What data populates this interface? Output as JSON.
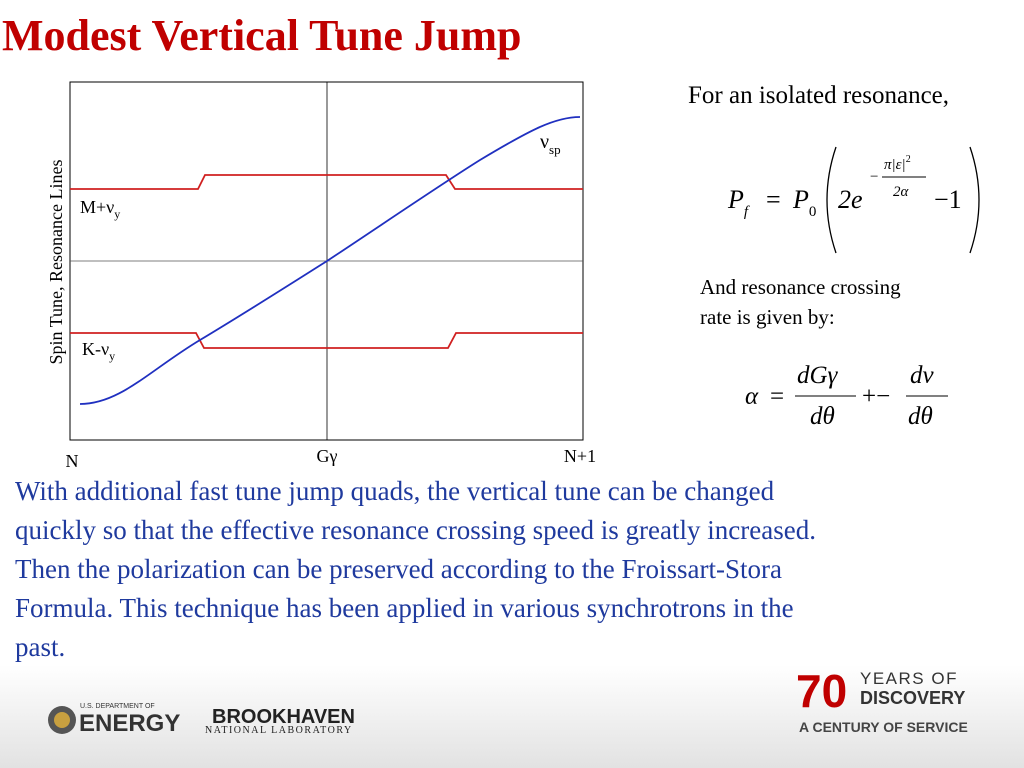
{
  "title": "Modest Vertical Tune Jump",
  "figure": {
    "y_label": "Spin Tune, Resonance Lines",
    "x_labels": [
      "N",
      "Gγ",
      "N+1"
    ],
    "spin_line": {
      "main": "ν",
      "sub": "sp"
    },
    "upper_line": {
      "main": "M+ν",
      "sub": "y"
    },
    "lower_line": {
      "main": "K-ν",
      "sub": "y"
    }
  },
  "formula_intro": "For an isolated resonance,",
  "formula1": {
    "lhs": "P",
    "lhs_sub": "f",
    "eq": "=",
    "p0": "P",
    "p0_sub": "0",
    "base": "2e",
    "exp_sign": "−",
    "exp_num": "π|ε|",
    "exp_num_sup": "2",
    "exp_den": "2α",
    "tail": "−1"
  },
  "rate_intro": [
    "And resonance crossing",
    "rate is given by:"
  ],
  "formula2": {
    "lhs": "α",
    "eq": "=",
    "num1": "dGγ",
    "den1": "dθ",
    "op": "+−",
    "num2": "dν",
    "den2": "dθ"
  },
  "body": [
    "With additional fast tune jump quads, the vertical tune can be changed",
    "quickly so that the effective resonance crossing speed is greatly increased.",
    "Then the polarization can be preserved according to the Froissart-Stora",
    "Formula.  This technique has been applied in various synchrotrons in the",
    "past."
  ],
  "footer": {
    "doe_top": "U.S. DEPARTMENT OF",
    "doe": "ENERGY",
    "bnl": "BROOKHAVEN",
    "bnl_sub": "NATIONAL LABORATORY",
    "anniv_num": "70",
    "anniv_1": "YEARS OF",
    "anniv_2": "DISCOVERY",
    "anniv_3": "A CENTURY OF SERVICE"
  }
}
